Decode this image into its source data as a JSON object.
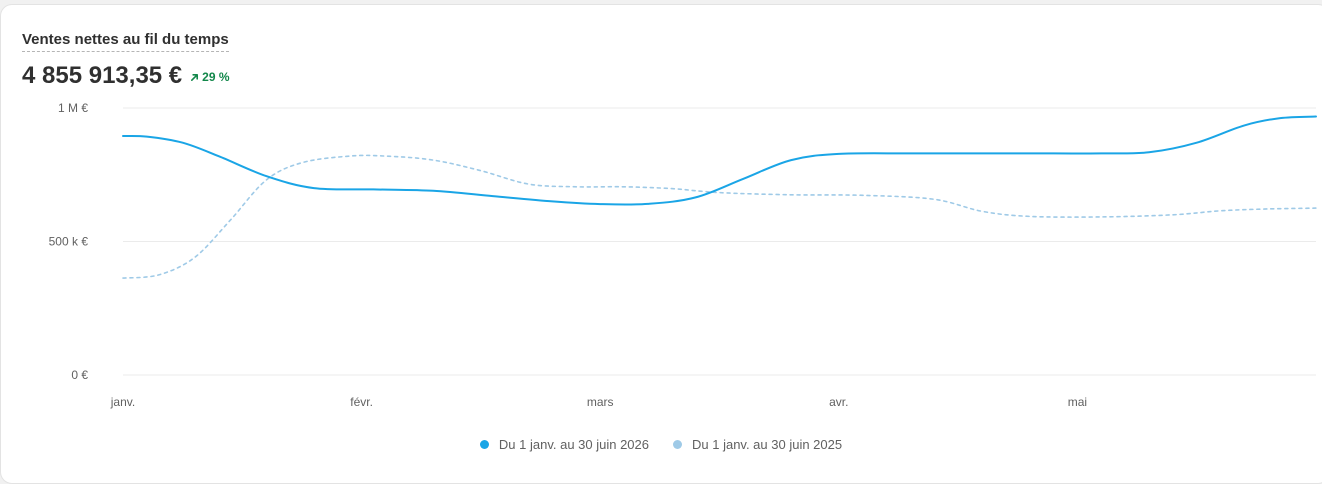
{
  "card": {
    "title": "Ventes nettes au fil du temps",
    "total": "4 855 913,35 €",
    "delta": "29 %",
    "delta_color": "#12874a",
    "delta_icon": "arrow-up-right-icon"
  },
  "chart_data": {
    "type": "line",
    "title": "Ventes nettes au fil du temps",
    "xlabel": "",
    "ylabel": "",
    "grid": true,
    "legend_position": "bottom",
    "ylim": [
      0,
      1000000
    ],
    "y_ticks": [
      {
        "value": 0,
        "label": "0 €"
      },
      {
        "value": 500000,
        "label": "500 k €"
      },
      {
        "value": 1000000,
        "label": "1 M €"
      }
    ],
    "x_ticks": [
      {
        "value": 1,
        "label": "janv."
      },
      {
        "value": 2,
        "label": "févr."
      },
      {
        "value": 3,
        "label": "mars"
      },
      {
        "value": 4,
        "label": "avr."
      },
      {
        "value": 5,
        "label": "mai"
      }
    ],
    "xlim": [
      1,
      6
    ],
    "series": [
      {
        "name": "Du 1 janv. au 30 juin 2026",
        "color": "#1aa5e6",
        "dashed": false,
        "x": [
          1,
          1.1,
          1.25,
          1.4,
          1.6,
          1.8,
          2.05,
          2.3,
          2.55,
          2.8,
          3.0,
          3.2,
          3.4,
          3.6,
          3.8,
          4.0,
          4.3,
          4.6,
          4.9,
          5.1,
          5.3,
          5.5,
          5.7,
          5.85,
          6.0
        ],
        "y": [
          895000,
          893000,
          870000,
          820000,
          745000,
          700000,
          695000,
          690000,
          670000,
          650000,
          640000,
          641000,
          665000,
          735000,
          805000,
          828000,
          830000,
          830000,
          830000,
          830000,
          834000,
          870000,
          935000,
          962000,
          968000
        ]
      },
      {
        "name": "Du 1 janv. au 30 juin 2025",
        "color": "#9fcae7",
        "dashed": true,
        "x": [
          1,
          1.15,
          1.3,
          1.45,
          1.6,
          1.75,
          1.95,
          2.1,
          2.3,
          2.5,
          2.7,
          2.9,
          3.1,
          3.3,
          3.5,
          3.8,
          4.1,
          4.4,
          4.6,
          4.8,
          5.1,
          5.4,
          5.6,
          5.8,
          6.0
        ],
        "y": [
          363000,
          375000,
          440000,
          580000,
          730000,
          795000,
          820000,
          820000,
          805000,
          765000,
          715000,
          705000,
          705000,
          698000,
          683000,
          675000,
          673000,
          658000,
          613000,
          594000,
          592000,
          600000,
          615000,
          622000,
          625000
        ]
      }
    ]
  }
}
